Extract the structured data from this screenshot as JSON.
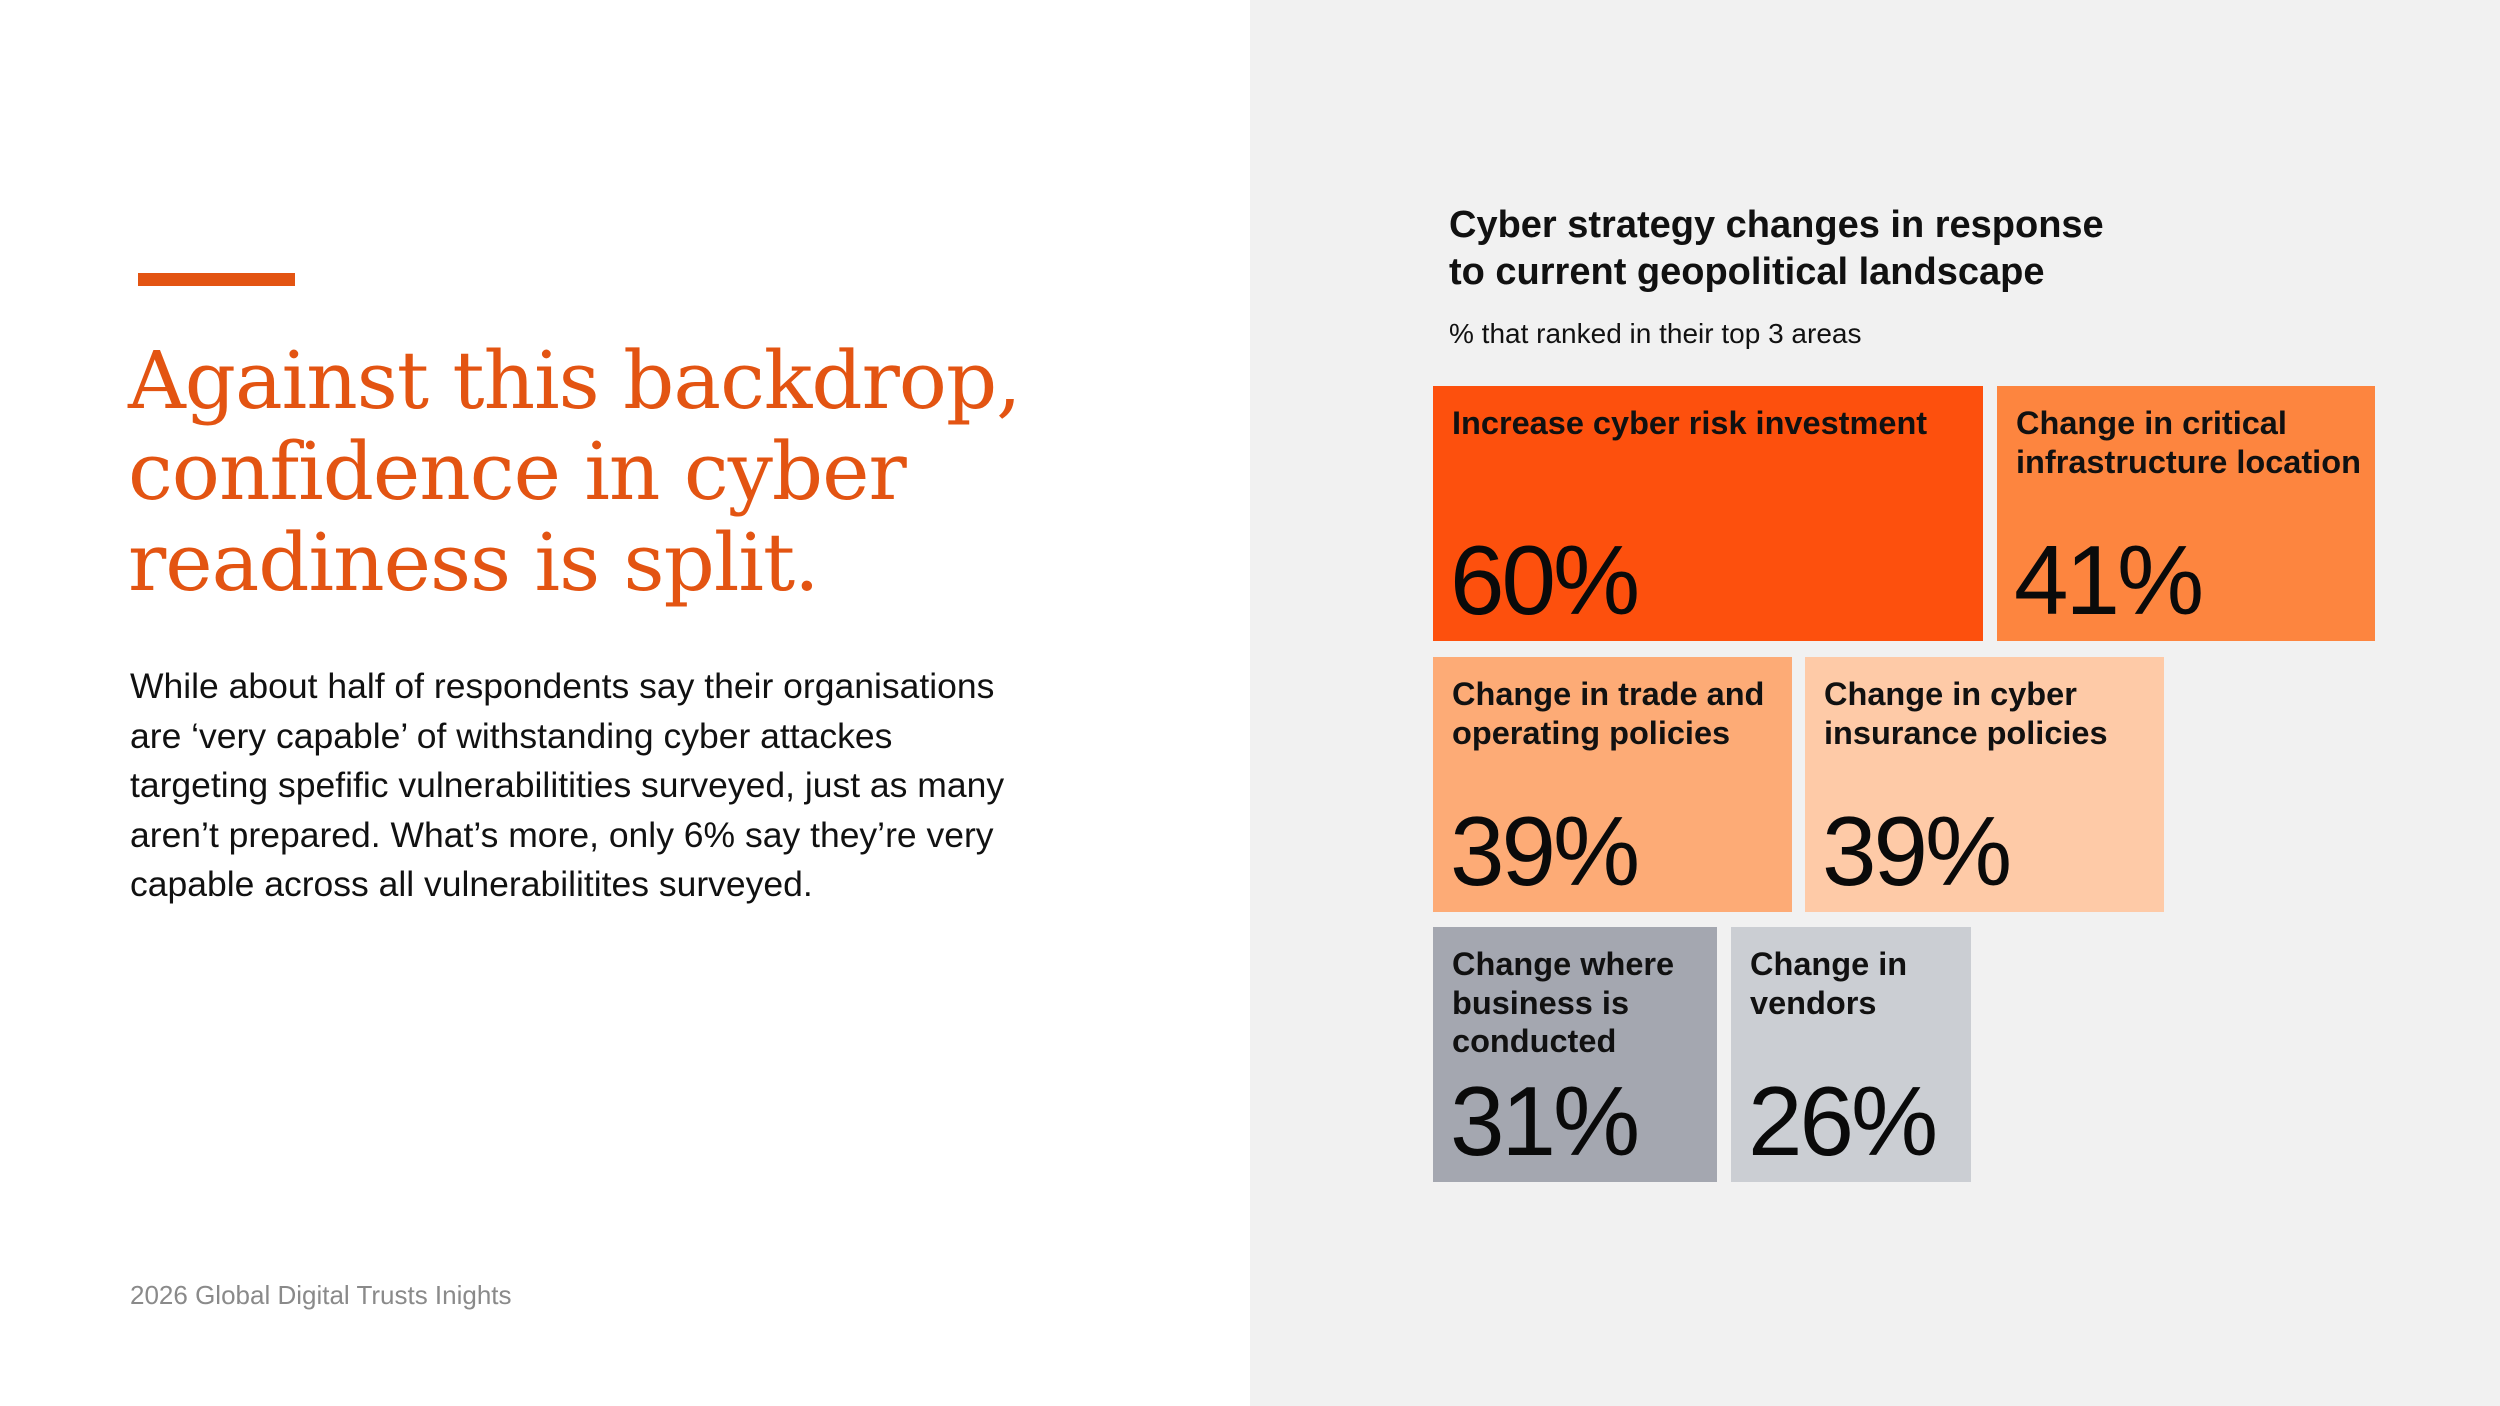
{
  "headline": {
    "lines": [
      "Against this backdrop,",
      "confidence in cyber",
      "readiness is split."
    ]
  },
  "body": {
    "lines": [
      "While about half of respondents say their organisations",
      "are ‘very capable’ of withstanding cyber attackes",
      "targeting spefific vulnerabilitities surveyed, just as many",
      "aren’t prepared. What’s more, only 6% say they’re very",
      "capable across all vulnerabilitites surveyed."
    ]
  },
  "footer": "2026 Global Digital Trusts Inights",
  "colors": {
    "accent": "#e35412",
    "panel_background": "#f1f1f1"
  },
  "chart_data": {
    "type": "treemap",
    "title_lines": [
      "Cyber strategy changes in response",
      "to current geopolitical landscape"
    ],
    "subtitle": "% that ranked in their top 3 areas",
    "unit": "%",
    "items": [
      {
        "label_lines": [
          "Increase cyber risk investment"
        ],
        "value": 60,
        "display": "60%",
        "color": "#fd500d"
      },
      {
        "label_lines": [
          "Change in critical",
          "infrastructure location"
        ],
        "value": 41,
        "display": "41%",
        "color": "#fd853f"
      },
      {
        "label_lines": [
          "Change in trade and",
          "operating policies"
        ],
        "value": 39,
        "display": "39%",
        "color": "#fdab76"
      },
      {
        "label_lines": [
          "Change in cyber",
          "insurance policies"
        ],
        "value": 39,
        "display": "39%",
        "color": "#fecaa7"
      },
      {
        "label_lines": [
          "Change where",
          "business is",
          "conducted"
        ],
        "value": 31,
        "display": "31%",
        "color": "#a4a7b0"
      },
      {
        "label_lines": [
          "Change in",
          "vendors"
        ],
        "value": 26,
        "display": "26%",
        "color": "#cbced3"
      }
    ]
  }
}
